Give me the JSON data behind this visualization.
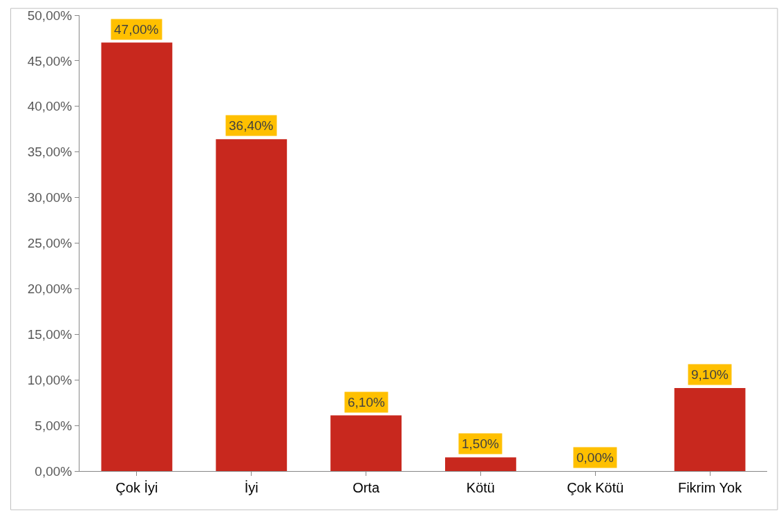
{
  "chart_data": {
    "type": "bar",
    "categories": [
      "Çok İyi",
      "İyi",
      "Orta",
      "Kötü",
      "Çok Kötü",
      "Fikrim Yok"
    ],
    "values": [
      47.0,
      36.4,
      6.1,
      1.5,
      0.0,
      9.1
    ],
    "value_labels": [
      "47,00%",
      "36,40%",
      "6,10%",
      "1,50%",
      "0,00%",
      "9,10%"
    ],
    "color": "#c8281e",
    "ylim": [
      0,
      50
    ],
    "yticks": [
      {
        "value": 0,
        "label": "0,00%"
      },
      {
        "value": 5,
        "label": "5,00%"
      },
      {
        "value": 10,
        "label": "10,00%"
      },
      {
        "value": 15,
        "label": "15,00%"
      },
      {
        "value": 20,
        "label": "20,00%"
      },
      {
        "value": 25,
        "label": "25,00%"
      },
      {
        "value": 30,
        "label": "30,00%"
      },
      {
        "value": 35,
        "label": "35,00%"
      },
      {
        "value": 40,
        "label": "40,00%"
      },
      {
        "value": 45,
        "label": "45,00%"
      },
      {
        "value": 50,
        "label": "50,00%"
      }
    ],
    "legend": false
  }
}
